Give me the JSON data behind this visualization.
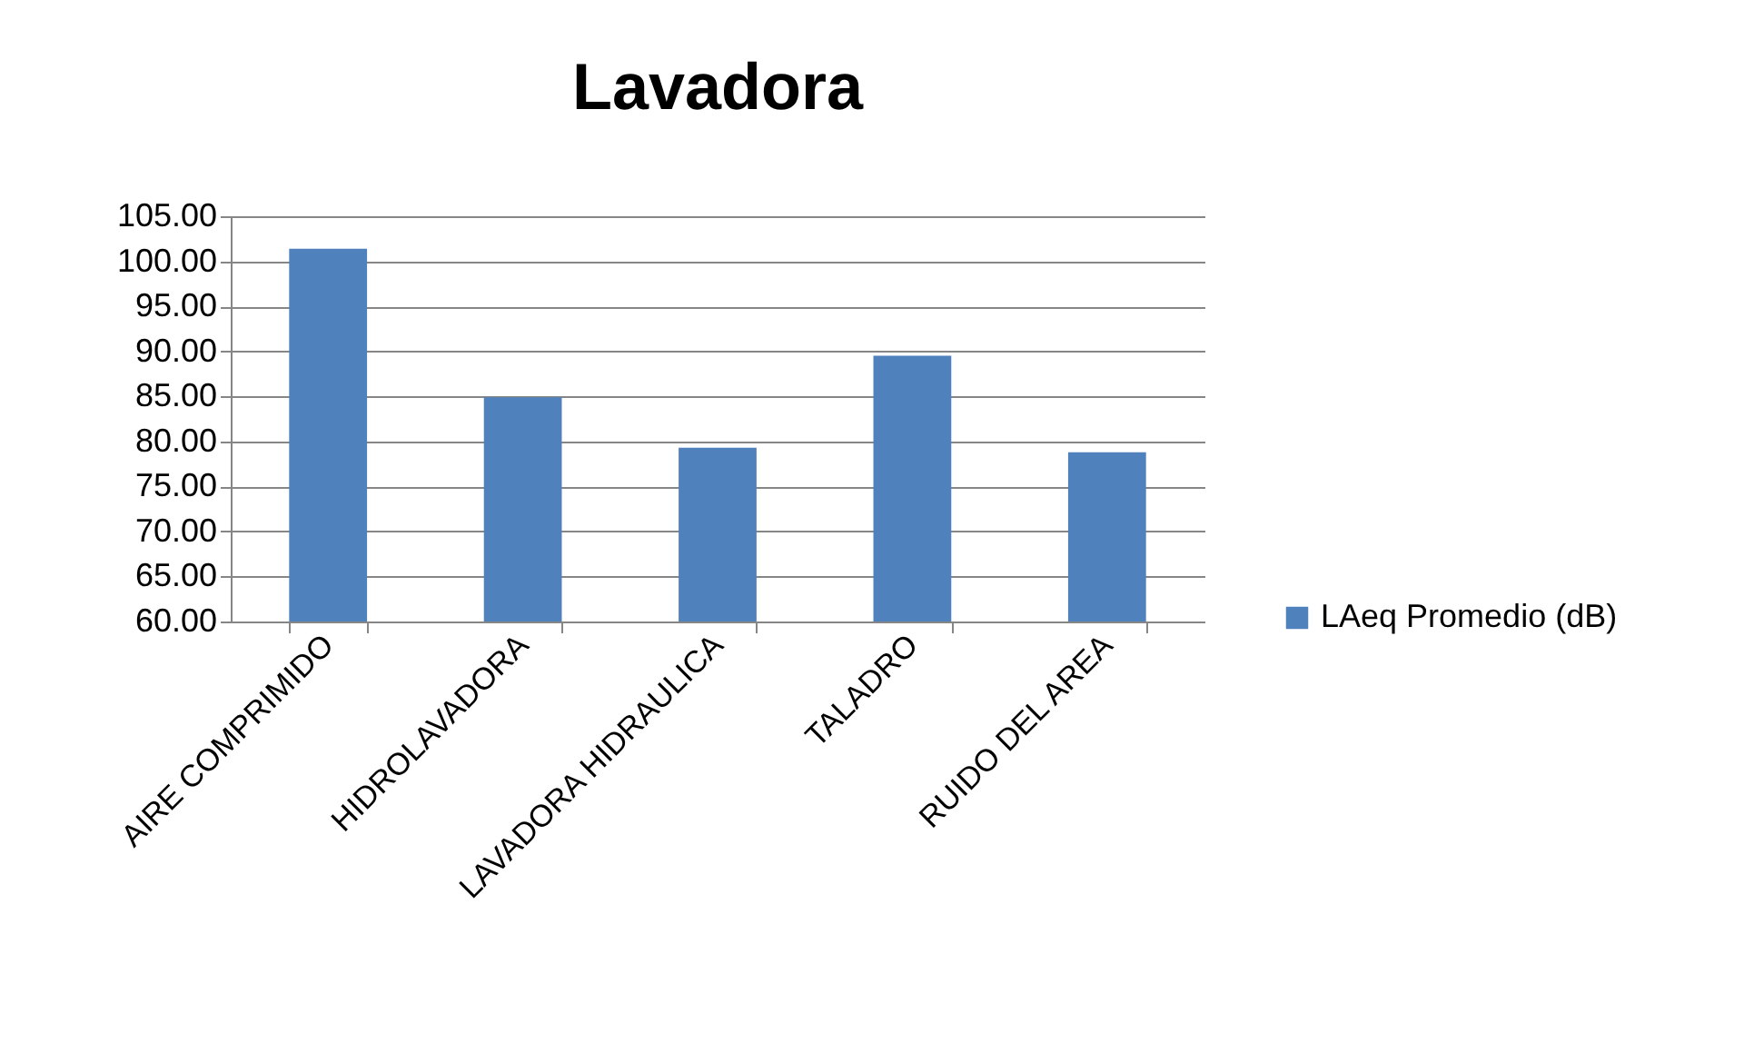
{
  "chart_data": {
    "type": "bar",
    "title": "Lavadora",
    "categories": [
      "AIRE COMPRIMIDO",
      "HIDROLAVADORA",
      "LAVADORA HIDRAULICA",
      "TALADRO",
      "RUIDO DEL AREA"
    ],
    "series": [
      {
        "name": "LAeq Promedio (dB)",
        "color": "#4f81bd",
        "values": [
          101.4,
          84.9,
          79.3,
          89.5,
          78.8
        ]
      }
    ],
    "ylim": [
      60,
      105
    ],
    "yticks": [
      {
        "value": 60,
        "label": "60.00"
      },
      {
        "value": 65,
        "label": "65.00"
      },
      {
        "value": 70,
        "label": "70.00"
      },
      {
        "value": 75,
        "label": "75.00"
      },
      {
        "value": 80,
        "label": "80.00"
      },
      {
        "value": 85,
        "label": "85.00"
      },
      {
        "value": 90,
        "label": "90.00"
      },
      {
        "value": 95,
        "label": "95.00"
      },
      {
        "value": 100,
        "label": "100.00"
      },
      {
        "value": 105,
        "label": "105.00"
      }
    ],
    "grid": "y",
    "legend": "right"
  }
}
